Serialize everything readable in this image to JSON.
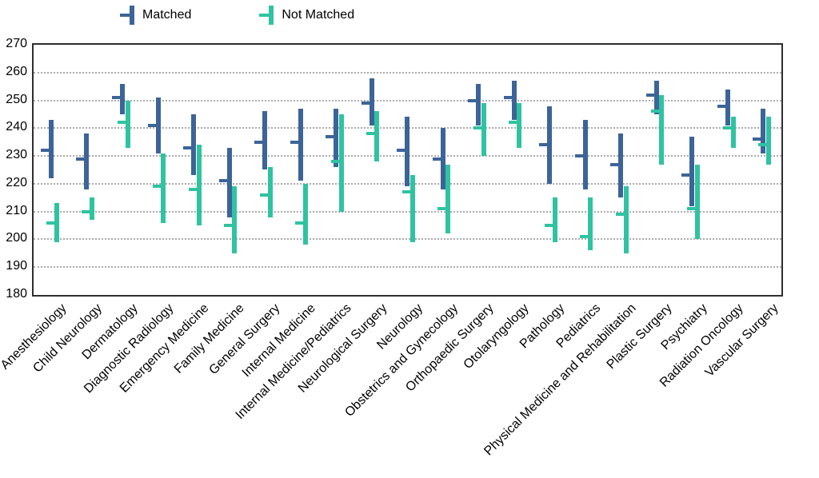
{
  "legend": {
    "matched_label": "Matched",
    "not_matched_label": "Not Matched"
  },
  "colors": {
    "matched": "#3C6498",
    "not_matched": "#2FC3A1",
    "grid": "#8F8F8F",
    "plot_border": "#2E2E2E",
    "text": "#000000"
  },
  "chart_data": {
    "type": "bar",
    "variant": "floating-range-bars-with-median-tick",
    "title": "",
    "xlabel": "",
    "ylabel": "",
    "ylim": [
      180,
      270
    ],
    "ytick_step": 10,
    "ytick_labels": [
      "270",
      "260",
      "250",
      "240",
      "230",
      "220",
      "210",
      "200",
      "190",
      "180"
    ],
    "grid": "horizontal dotted at每 10 units from 190 to 260",
    "legend_position": "top, outside plot",
    "categories": [
      "Anesthesiology",
      "Child Neurology",
      "Dermatology",
      "Diagnostic Radiology",
      "Emergency Medicine",
      "Family Medicine",
      "General Surgery",
      "Internal Medicine",
      "Internal Medicine/Pediatrics",
      "Neurological Surgery",
      "Neurology",
      "Obstetrics and Gynecology",
      "Orthopaedic Surgery",
      "Otolaryngology",
      "Pathology",
      "Pediatrics",
      "Physical Medicine and Rehabilitation",
      "Plastic Surgery",
      "Psychiatry",
      "Radiation Oncology",
      "Vascular Surgery"
    ],
    "series": [
      {
        "name": "Matched",
        "color": "#3C6498",
        "low": [
          222,
          218,
          245,
          231,
          223,
          208,
          225,
          221,
          226,
          241,
          219,
          218,
          241,
          243,
          220,
          218,
          215,
          245,
          212,
          241,
          231
        ],
        "median": [
          232,
          229,
          251,
          241,
          233,
          221,
          235,
          235,
          237,
          249,
          232,
          229,
          250,
          251,
          234,
          230,
          227,
          252,
          223,
          248,
          236
        ],
        "high": [
          243,
          238,
          256,
          251,
          245,
          233,
          246,
          247,
          247,
          258,
          244,
          240,
          256,
          257,
          248,
          243,
          238,
          257,
          237,
          254,
          247
        ]
      },
      {
        "name": "Not Matched",
        "color": "#2FC3A1",
        "low": [
          199,
          207,
          233,
          206,
          205,
          195,
          208,
          198,
          210,
          228,
          199,
          202,
          230,
          233,
          199,
          196,
          195,
          227,
          200,
          233,
          227
        ],
        "median": [
          206,
          210,
          242,
          219,
          218,
          205,
          216,
          206,
          228,
          238,
          217,
          211,
          240,
          242,
          205,
          201,
          209,
          246,
          211,
          240,
          234
        ],
        "high": [
          213,
          215,
          250,
          231,
          234,
          219,
          226,
          220,
          245,
          246,
          223,
          227,
          249,
          249,
          215,
          215,
          219,
          252,
          227,
          244,
          244
        ]
      }
    ]
  }
}
